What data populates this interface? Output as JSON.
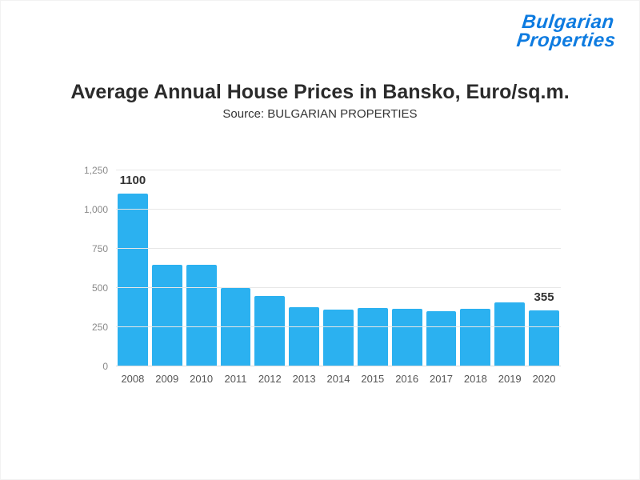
{
  "logo": {
    "line1": "Bulgarian",
    "line2": "Properties",
    "color": "#0d7be0"
  },
  "chart_data": {
    "type": "bar",
    "title": "Average Annual House Prices in Bansko, Euro/sq.m.",
    "subtitle": "Source: BULGARIAN PROPERTIES",
    "categories": [
      "2008",
      "2009",
      "2010",
      "2011",
      "2012",
      "2013",
      "2014",
      "2015",
      "2016",
      "2017",
      "2018",
      "2019",
      "2020"
    ],
    "values": [
      1100,
      650,
      650,
      500,
      450,
      380,
      360,
      370,
      365,
      350,
      365,
      410,
      355
    ],
    "bar_color": "#2bb1f0",
    "xlabel": "",
    "ylabel": "",
    "ylim": [
      0,
      1250
    ],
    "yticks": [
      0,
      250,
      500,
      750,
      1000,
      1250
    ],
    "ytick_labels": [
      "0",
      "250",
      "500",
      "750",
      "1,000",
      "1,250"
    ],
    "grid": true,
    "legend": "none",
    "annotations": [
      {
        "category": "2008",
        "text": "1100"
      },
      {
        "category": "2020",
        "text": "355"
      }
    ]
  }
}
